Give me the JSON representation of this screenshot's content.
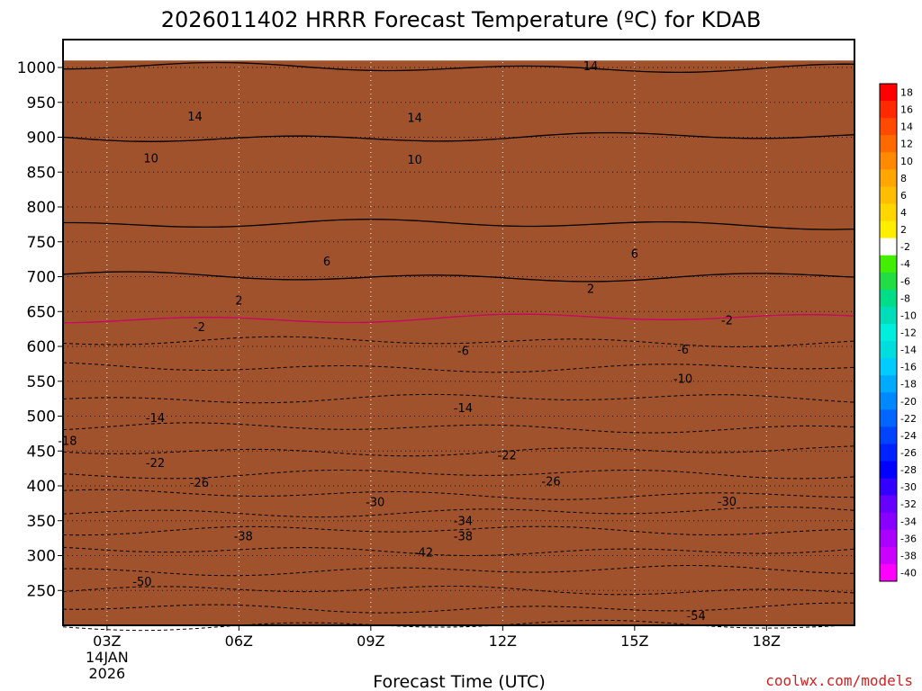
{
  "chart_data": {
    "type": "heatmap",
    "title": "2026011402 HRRR Forecast Temperature (ºC) for KDAB",
    "xlabel": "Forecast Time (UTC)",
    "ylabel": "",
    "credit": "coolwx.com/models",
    "x_ticks": [
      {
        "hour": 3,
        "label": "03Z"
      },
      {
        "hour": 6,
        "label": "06Z"
      },
      {
        "hour": 9,
        "label": "09Z"
      },
      {
        "hour": 12,
        "label": "12Z"
      },
      {
        "hour": 15,
        "label": "15Z"
      },
      {
        "hour": 18,
        "label": "18Z"
      }
    ],
    "x_sublabel_date": "14JAN",
    "x_sublabel_year": "2026",
    "xlim": [
      2,
      20
    ],
    "ylim": [
      1040,
      200
    ],
    "y_ticks": [
      250,
      300,
      350,
      400,
      450,
      500,
      550,
      600,
      650,
      700,
      750,
      800,
      850,
      900,
      950,
      1000
    ],
    "colorbar": {
      "ticks": [
        "18",
        "16",
        "14",
        "12",
        "10",
        "8",
        "6",
        "4",
        "2",
        "-2",
        "-4",
        "-6",
        "-8",
        "-10",
        "-12",
        "-14",
        "-16",
        "-18",
        "-20",
        "-22",
        "-24",
        "-26",
        "-28",
        "-30",
        "-32",
        "-34",
        "-36",
        "-38",
        "-40"
      ],
      "colors": [
        "#ff0000",
        "#ff2a00",
        "#ff4a00",
        "#ff6a00",
        "#ff8a00",
        "#ffa600",
        "#ffbe00",
        "#ffd600",
        "#ffee00",
        "#ffffff",
        "#44ee00",
        "#22dd44",
        "#00dd88",
        "#00ddbb",
        "#00eedd",
        "#00dddd",
        "#00ccff",
        "#00aaff",
        "#0088ff",
        "#0066ff",
        "#0044ff",
        "#0022ff",
        "#0000ff",
        "#3300ff",
        "#6600ff",
        "#8800ff",
        "#aa00ff",
        "#cc00ff",
        "#ff00ff"
      ]
    },
    "temperature_profile": [
      {
        "p": 1010,
        "t": 17
      },
      {
        "p": 1000,
        "t": 16
      },
      {
        "p": 950,
        "t": 14
      },
      {
        "p": 900,
        "t": 12
      },
      {
        "p": 850,
        "t": 10
      },
      {
        "p": 800,
        "t": 9
      },
      {
        "p": 750,
        "t": 7
      },
      {
        "p": 700,
        "t": 4
      },
      {
        "p": 675,
        "t": 2
      },
      {
        "p": 640,
        "t": 0
      },
      {
        "p": 620,
        "t": -2
      },
      {
        "p": 600,
        "t": -5
      },
      {
        "p": 550,
        "t": -10
      },
      {
        "p": 500,
        "t": -14
      },
      {
        "p": 450,
        "t": -20
      },
      {
        "p": 400,
        "t": -26
      },
      {
        "p": 350,
        "t": -34
      },
      {
        "p": 300,
        "t": -41
      },
      {
        "p": 250,
        "t": -48
      },
      {
        "p": 200,
        "t": -56
      }
    ],
    "surface_pressure": 1010,
    "contour_labels": [
      {
        "text": "-54",
        "hour": 16.4,
        "p": 213
      },
      {
        "text": "-50",
        "hour": 3.8,
        "p": 262
      },
      {
        "text": "-42",
        "hour": 10.2,
        "p": 304
      },
      {
        "text": "-38",
        "hour": 6.1,
        "p": 327
      },
      {
        "text": "-38",
        "hour": 11.1,
        "p": 327
      },
      {
        "text": "-34",
        "hour": 11.1,
        "p": 349
      },
      {
        "text": "-30",
        "hour": 9.1,
        "p": 376
      },
      {
        "text": "-30",
        "hour": 17.1,
        "p": 377
      },
      {
        "text": "-26",
        "hour": 5.1,
        "p": 404
      },
      {
        "text": "-26",
        "hour": 13.1,
        "p": 406
      },
      {
        "text": "-22",
        "hour": 4.1,
        "p": 432
      },
      {
        "text": "-22",
        "hour": 12.1,
        "p": 443
      },
      {
        "text": "-18",
        "hour": 2.1,
        "p": 464
      },
      {
        "text": "-14",
        "hour": 4.1,
        "p": 497
      },
      {
        "text": "-14",
        "hour": 11.1,
        "p": 511
      },
      {
        "text": "-10",
        "hour": 16.1,
        "p": 553
      },
      {
        "text": "-6",
        "hour": 11.1,
        "p": 593
      },
      {
        "text": "-6",
        "hour": 16.1,
        "p": 595
      },
      {
        "text": "-2",
        "hour": 5.1,
        "p": 627
      },
      {
        "text": "-2",
        "hour": 17.1,
        "p": 637
      },
      {
        "text": "2",
        "hour": 6.0,
        "p": 665
      },
      {
        "text": "2",
        "hour": 14.0,
        "p": 682
      },
      {
        "text": "6",
        "hour": 8.0,
        "p": 721
      },
      {
        "text": "6",
        "hour": 15.0,
        "p": 732
      },
      {
        "text": "10",
        "hour": 4.0,
        "p": 869
      },
      {
        "text": "10",
        "hour": 10.0,
        "p": 867
      },
      {
        "text": "14",
        "hour": 5.0,
        "p": 929
      },
      {
        "text": "14",
        "hour": 10.0,
        "p": 927
      },
      {
        "text": "14",
        "hour": 14.0,
        "p": 1001
      }
    ]
  }
}
